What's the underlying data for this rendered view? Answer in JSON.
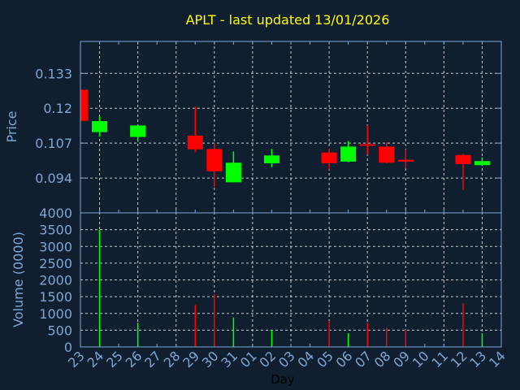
{
  "chart_data": {
    "type": "candlestick",
    "title": "APLT - last updated 13/01/2026",
    "xlabel": "Day",
    "ylabel": "Price",
    "volume_label": "Volume (0000)",
    "x_ticks": [
      "23",
      "24",
      "25",
      "26",
      "27",
      "28",
      "29",
      "30",
      "31",
      "01",
      "02",
      "03",
      "04",
      "05",
      "06",
      "07",
      "08",
      "09",
      "10",
      "11",
      "12",
      "13",
      "14"
    ],
    "price_ticks": [
      "0.094",
      "0.107",
      "0.12",
      "0.133"
    ],
    "price_tick_values": [
      0.094,
      0.107,
      0.12,
      0.133
    ],
    "ylim": [
      0.081,
      0.1449
    ],
    "volume_ticks": [
      "0",
      "500",
      "1000",
      "1500",
      "2000",
      "2500",
      "3000",
      "3500",
      "4000"
    ],
    "volume_ylim": [
      0,
      4000
    ],
    "grid": true,
    "colors": {
      "up": "#00ff00",
      "down": "#ff0000",
      "background": "#0f1f30",
      "axis": "#7fa6d0",
      "grid": "#c8c8c8",
      "title": "#ffff00"
    },
    "candles": [
      {
        "day": "23",
        "open": 0.1269,
        "high": 0.1269,
        "low": 0.1153,
        "close": 0.1153,
        "volume": null
      },
      {
        "day": "24",
        "open": 0.1111,
        "high": 0.1169,
        "low": 0.1094,
        "close": 0.1152,
        "volume": 3500
      },
      {
        "day": "26",
        "open": 0.1093,
        "high": 0.1136,
        "low": 0.1075,
        "close": 0.1136,
        "volume": 720
      },
      {
        "day": "29",
        "open": 0.1098,
        "high": 0.1206,
        "low": 0.1036,
        "close": 0.1047,
        "volume": 1250
      },
      {
        "day": "30",
        "open": 0.1048,
        "high": 0.1068,
        "low": 0.0906,
        "close": 0.0965,
        "volume": 1580
      },
      {
        "day": "31",
        "open": 0.0924,
        "high": 0.1039,
        "low": 0.0924,
        "close": 0.0997,
        "volume": 880
      },
      {
        "day": "02",
        "open": 0.0995,
        "high": 0.1048,
        "low": 0.0981,
        "close": 0.1024,
        "volume": 510
      },
      {
        "day": "05",
        "open": 0.1035,
        "high": 0.1049,
        "low": 0.0972,
        "close": 0.0995,
        "volume": 780
      },
      {
        "day": "06",
        "open": 0.1001,
        "high": 0.1078,
        "low": 0.0999,
        "close": 0.1057,
        "volume": 410
      },
      {
        "day": "07",
        "open": 0.1066,
        "high": 0.1136,
        "low": 0.1027,
        "close": 0.106,
        "volume": 710
      },
      {
        "day": "08",
        "open": 0.1057,
        "high": 0.1073,
        "low": 0.0995,
        "close": 0.0997,
        "volume": 565
      },
      {
        "day": "09",
        "open": 0.1008,
        "high": 0.1046,
        "low": 0.0975,
        "close": 0.1001,
        "volume": 520
      },
      {
        "day": "12",
        "open": 0.1026,
        "high": 0.103,
        "low": 0.0896,
        "close": 0.0992,
        "volume": 1300
      },
      {
        "day": "13",
        "open": 0.0988,
        "high": 0.1017,
        "low": 0.0986,
        "close": 0.1003,
        "volume": 410
      }
    ]
  }
}
